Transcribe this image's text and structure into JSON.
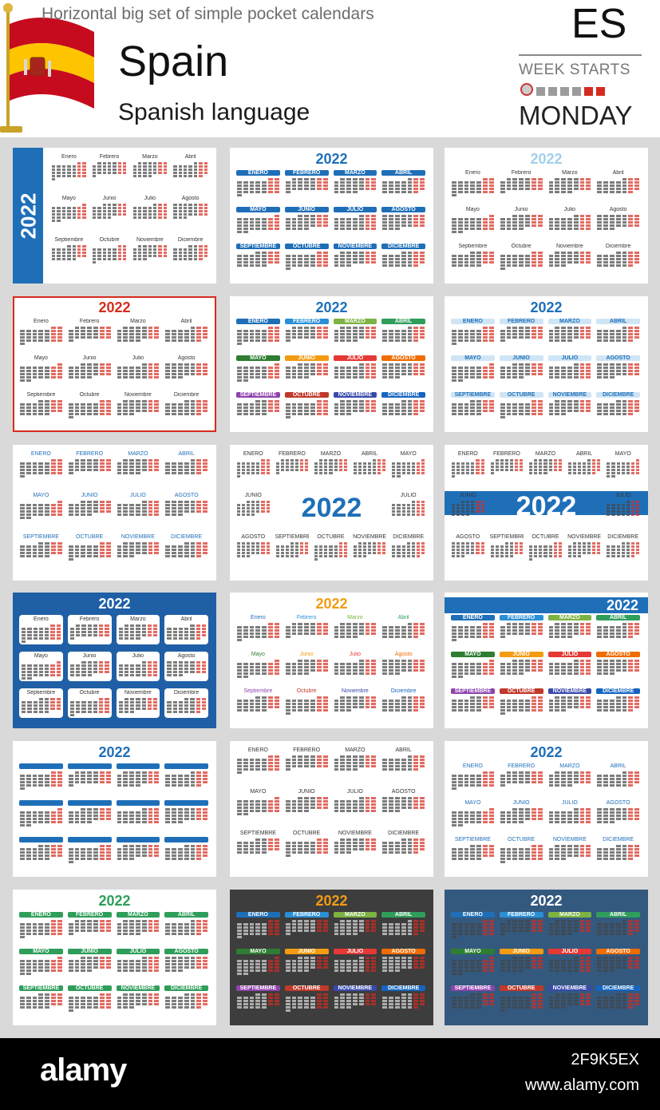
{
  "header": {
    "top_line": "Horizontal big set of simple pocket calendars",
    "country": "Spain",
    "language": "Spanish language",
    "code": "ES",
    "week_starts": "WEEK STARTS",
    "start_day": "MONDAY"
  },
  "year": "2022",
  "months_title": [
    "Enero",
    "Febrero",
    "Marzo",
    "Abril",
    "Mayo",
    "Junio",
    "Julio",
    "Agosto",
    "Septiembre",
    "Octubre",
    "Noviembre",
    "Diciembre"
  ],
  "months_upper": [
    "ENERO",
    "FEBRERO",
    "MARZO",
    "ABRIL",
    "MAYO",
    "JUNIO",
    "JULIO",
    "AGOSTO",
    "SEPTIEMBRE",
    "OCTUBRE",
    "NOVIEMBRE",
    "DICIEMBRE"
  ],
  "colors": {
    "brand_blue": "#1f6fb8",
    "red": "#d52b1e",
    "flag_red": "#c60b1e",
    "flag_yellow": "#ffc400",
    "dark_bg": "#3d3d3d",
    "slate_bg": "#34597e"
  },
  "footer": {
    "logo": "alamy",
    "image_id": "2F9K5EX",
    "url": "www.alamy.com"
  }
}
